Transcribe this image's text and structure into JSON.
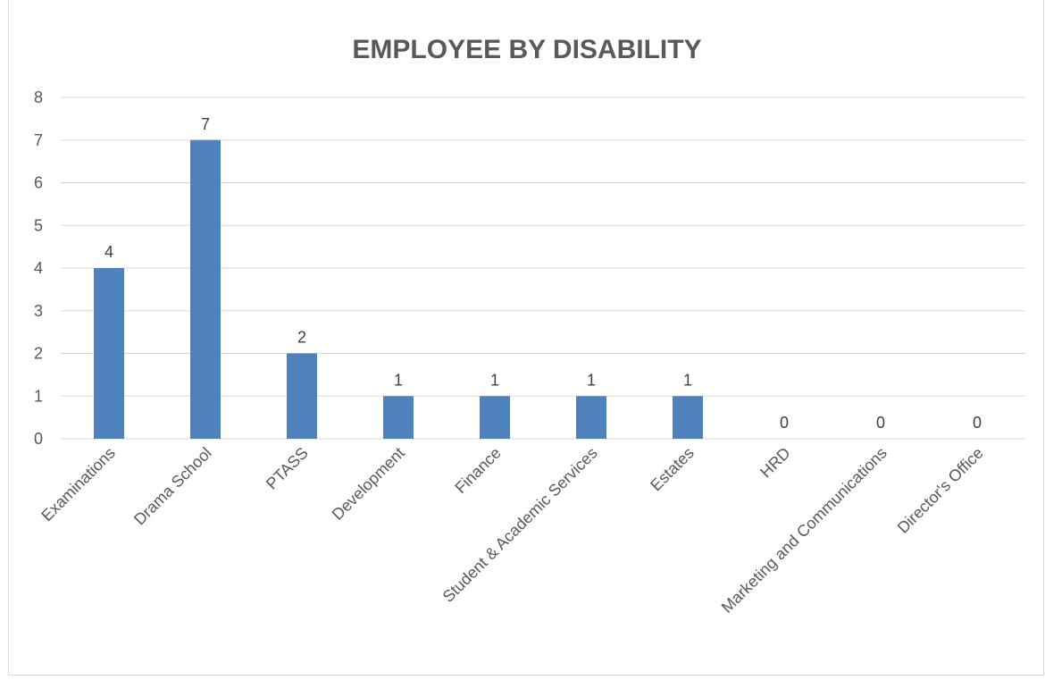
{
  "chart_data": {
    "type": "bar",
    "title": "EMPLOYEE BY DISABILITY",
    "categories": [
      "Examinations",
      "Drama School",
      "PTASS",
      "Development",
      "Finance",
      "Student & Academic Services",
      "Estates",
      "HRD",
      "Marketing and Communications",
      "Director's Office"
    ],
    "values": [
      4,
      7,
      2,
      1,
      1,
      1,
      1,
      0,
      0,
      0
    ],
    "data_labels": [
      "4",
      "7",
      "2",
      "1",
      "1",
      "1",
      "1",
      "0",
      "0",
      "0"
    ],
    "ylim": [
      0,
      8
    ],
    "yticks": [
      "0",
      "1",
      "2",
      "3",
      "4",
      "5",
      "6",
      "7",
      "8"
    ],
    "xlabel": "",
    "ylabel": "",
    "grid": true,
    "legend": "none",
    "colors": {
      "bar": "#4f81bd",
      "grid": "#d9d9d9",
      "title": "#595959",
      "text": "#595959"
    }
  }
}
